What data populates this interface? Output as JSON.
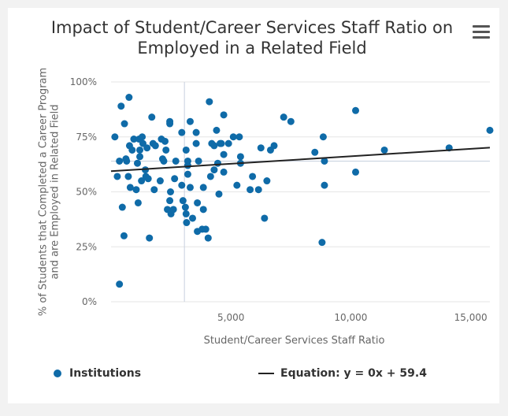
{
  "title_lines": [
    "Impact of Student/Career Services Staff Ratio on",
    "Employed in a Related Field"
  ],
  "menu": {
    "icon": "hamburger-menu-icon"
  },
  "colors": {
    "points": "#0f6ba8",
    "trend": "#222222",
    "grid": "#e6e6e6",
    "crosshair": "#c7d0de"
  },
  "legend": {
    "points_label": "Institutions",
    "trend_label": "Equation: y = 0x + 59.4"
  },
  "chart_data": {
    "type": "scatter",
    "title": "Impact of Student/Career Services Staff Ratio on Employed in a Related Field",
    "xlabel": "Student/Career Services Staff Ratio",
    "ylabel": [
      "% of Students that Completed a Career Program",
      "and are Employed in Related Field"
    ],
    "xlim": [
      0,
      15800
    ],
    "ylim": [
      0,
      100
    ],
    "x_ticks": [
      5000,
      10000,
      15000
    ],
    "x_tick_labels": [
      "5,000",
      "10,000",
      "15,000"
    ],
    "y_ticks": [
      0,
      25,
      50,
      75,
      100
    ],
    "y_tick_labels": [
      "0%",
      "25%",
      "50%",
      "75%",
      "100%"
    ],
    "grid": "horizontal",
    "legend_position": "bottom",
    "crosshair": {
      "x": 3060,
      "y": 64
    },
    "series": [
      {
        "name": "Institutions",
        "points": [
          [
            160,
            75
          ],
          [
            260,
            57
          ],
          [
            350,
            8
          ],
          [
            350,
            64
          ],
          [
            420,
            89
          ],
          [
            470,
            43
          ],
          [
            540,
            30
          ],
          [
            560,
            81
          ],
          [
            620,
            65
          ],
          [
            650,
            64
          ],
          [
            720,
            57
          ],
          [
            750,
            93
          ],
          [
            770,
            71
          ],
          [
            800,
            52
          ],
          [
            880,
            69
          ],
          [
            950,
            74
          ],
          [
            1050,
            51
          ],
          [
            1100,
            63
          ],
          [
            1130,
            45
          ],
          [
            1170,
            74
          ],
          [
            1200,
            69
          ],
          [
            1200,
            66
          ],
          [
            1270,
            55
          ],
          [
            1300,
            75
          ],
          [
            1330,
            72
          ],
          [
            1430,
            60
          ],
          [
            1450,
            57
          ],
          [
            1500,
            70
          ],
          [
            1550,
            56
          ],
          [
            1600,
            29
          ],
          [
            1700,
            84
          ],
          [
            1750,
            72
          ],
          [
            1800,
            51
          ],
          [
            1850,
            71
          ],
          [
            2050,
            55
          ],
          [
            2100,
            74
          ],
          [
            2150,
            65
          ],
          [
            2200,
            64
          ],
          [
            2250,
            73
          ],
          [
            2290,
            69
          ],
          [
            2350,
            42
          ],
          [
            2450,
            82
          ],
          [
            2450,
            81
          ],
          [
            2450,
            46
          ],
          [
            2480,
            50
          ],
          [
            2500,
            40
          ],
          [
            2600,
            42
          ],
          [
            2650,
            56
          ],
          [
            2700,
            64
          ],
          [
            2950,
            77
          ],
          [
            2950,
            53
          ],
          [
            3000,
            46
          ],
          [
            3100,
            43
          ],
          [
            3130,
            40
          ],
          [
            3130,
            69
          ],
          [
            3150,
            36
          ],
          [
            3200,
            64
          ],
          [
            3200,
            62
          ],
          [
            3200,
            58
          ],
          [
            3300,
            82
          ],
          [
            3300,
            52
          ],
          [
            3400,
            38
          ],
          [
            3550,
            77
          ],
          [
            3550,
            72
          ],
          [
            3600,
            45
          ],
          [
            3600,
            32
          ],
          [
            3650,
            64
          ],
          [
            3800,
            33
          ],
          [
            3850,
            52
          ],
          [
            3850,
            42
          ],
          [
            3950,
            33
          ],
          [
            4050,
            29
          ],
          [
            4100,
            91
          ],
          [
            4150,
            57
          ],
          [
            4200,
            72
          ],
          [
            4300,
            71
          ],
          [
            4300,
            60
          ],
          [
            4400,
            78
          ],
          [
            4450,
            63
          ],
          [
            4500,
            49
          ],
          [
            4550,
            72
          ],
          [
            4600,
            72
          ],
          [
            4700,
            85
          ],
          [
            4700,
            67
          ],
          [
            4700,
            59
          ],
          [
            4900,
            72
          ],
          [
            5100,
            75
          ],
          [
            5250,
            53
          ],
          [
            5350,
            75
          ],
          [
            5400,
            66
          ],
          [
            5400,
            63
          ],
          [
            5800,
            51
          ],
          [
            5900,
            57
          ],
          [
            6150,
            51
          ],
          [
            6250,
            70
          ],
          [
            6400,
            38
          ],
          [
            6500,
            55
          ],
          [
            6650,
            69
          ],
          [
            6800,
            71
          ],
          [
            7200,
            84
          ],
          [
            7500,
            82
          ],
          [
            8500,
            68
          ],
          [
            8800,
            27
          ],
          [
            8850,
            75
          ],
          [
            8900,
            64
          ],
          [
            8900,
            53
          ],
          [
            10200,
            87
          ],
          [
            10200,
            59
          ],
          [
            11400,
            69
          ],
          [
            14100,
            70
          ],
          [
            15800,
            78
          ]
        ]
      },
      {
        "name": "Equation: y = 0x + 59.4",
        "type": "line",
        "x": [
          0,
          15800
        ],
        "y": [
          59.4,
          70.1
        ]
      }
    ]
  }
}
